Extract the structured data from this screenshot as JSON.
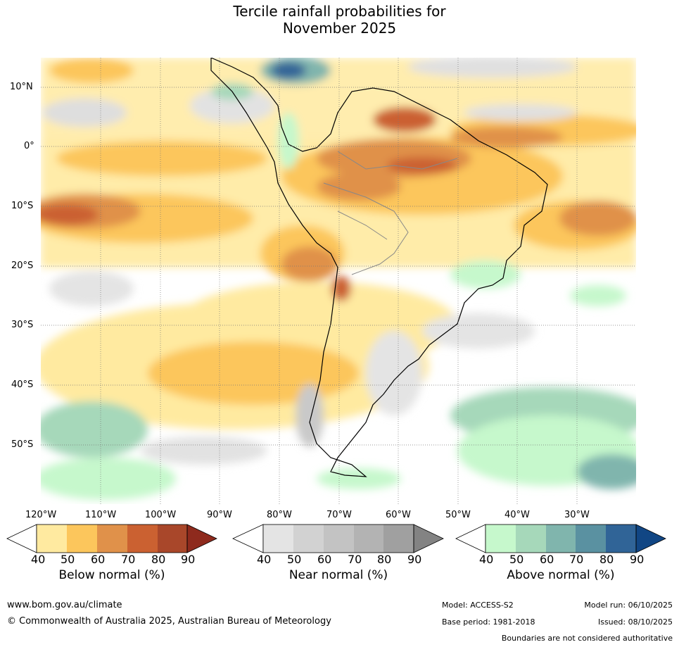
{
  "title": {
    "line1": "Tercile rainfall probabilities for",
    "line2": "November 2025"
  },
  "map": {
    "lat_labels": [
      "10°N",
      "0°",
      "10°S",
      "20°S",
      "30°S",
      "40°S",
      "50°S"
    ],
    "lon_labels": [
      "120°W",
      "110°W",
      "100°W",
      "90°W",
      "80°W",
      "70°W",
      "60°W",
      "50°W",
      "40°W",
      "30°W"
    ]
  },
  "colorbars": [
    {
      "name": "below",
      "title": "Below normal (%)",
      "ticks": [
        "40",
        "50",
        "60",
        "70",
        "80",
        "90"
      ],
      "colors": [
        "#ffeaa0",
        "#fcc65c",
        "#e0914a",
        "#cb6131",
        "#a9472a",
        "#8e2a1d"
      ]
    },
    {
      "name": "near",
      "title": "Near normal (%)",
      "ticks": [
        "40",
        "50",
        "60",
        "70",
        "80",
        "90"
      ],
      "colors": [
        "#e4e4e4",
        "#d2d2d2",
        "#c3c3c3",
        "#b3b3b3",
        "#a0a0a0",
        "#838383"
      ]
    },
    {
      "name": "above",
      "title": "Above normal (%)",
      "ticks": [
        "40",
        "50",
        "60",
        "70",
        "80",
        "90"
      ],
      "colors": [
        "#c6f8cc",
        "#a6d8ba",
        "#80b5ad",
        "#5a91a1",
        "#306497",
        "#114684"
      ]
    }
  ],
  "footer": {
    "url": "www.bom.gov.au/climate",
    "copyright": "© Commonwealth of Australia 2025, Australian Bureau of Meteorology",
    "model": "Model: ACCESS-S2",
    "base_period": "Base period: 1981-2018",
    "model_run": "Model run: 06/10/2025",
    "issued": "Issued: 08/10/2025",
    "disclaimer": "Boundaries are not considered authoritative"
  }
}
